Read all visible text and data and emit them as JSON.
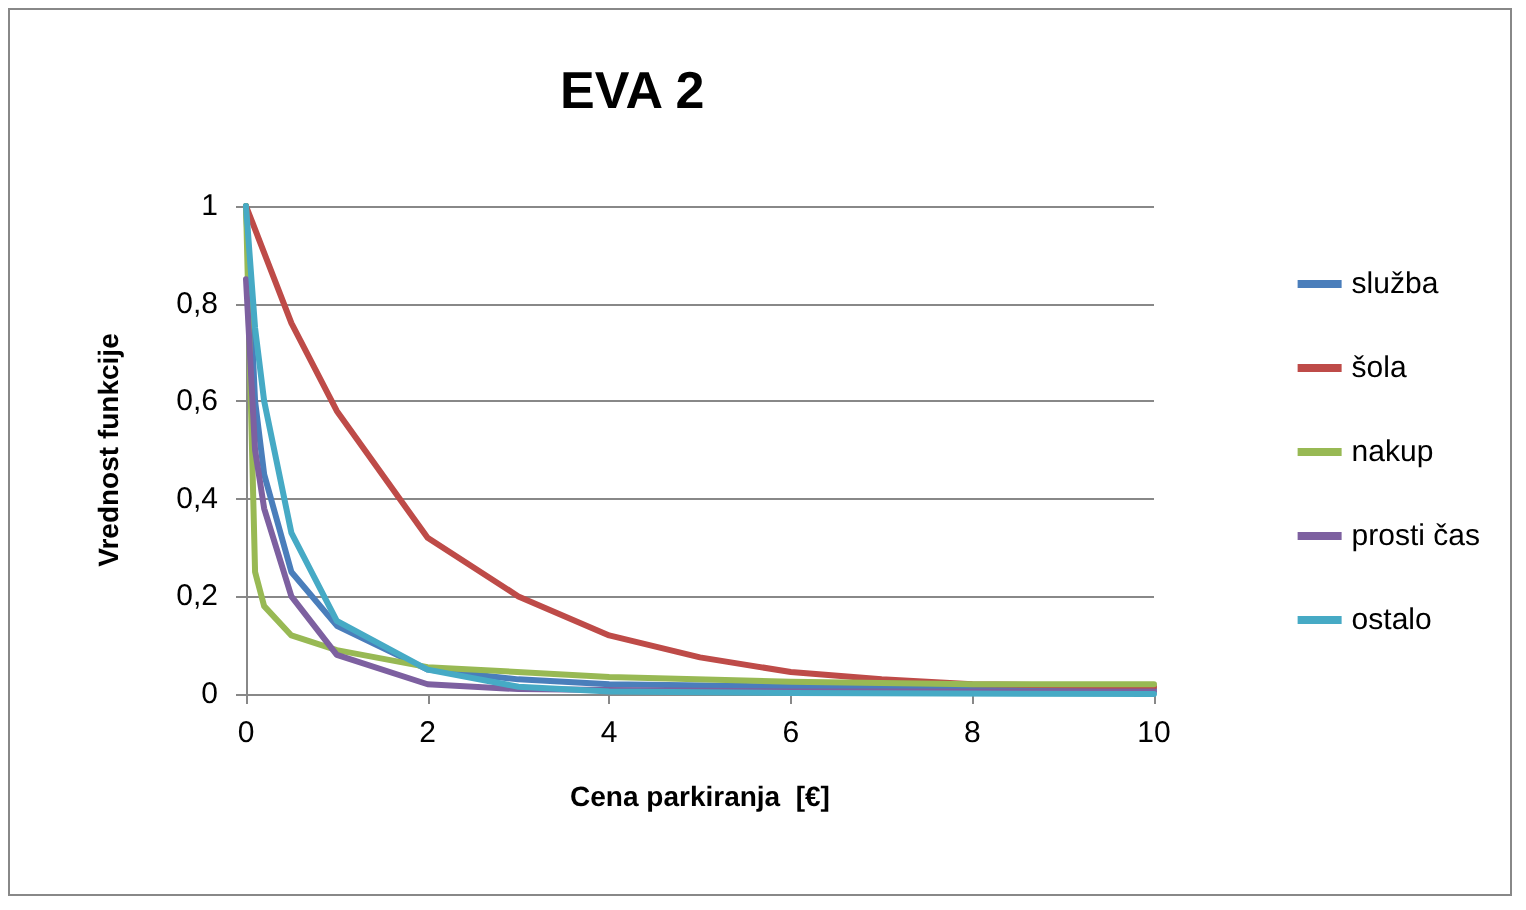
{
  "chart_data": {
    "type": "line",
    "title": "EVA 2",
    "xlabel": "Cena parkiranja  [€]",
    "ylabel": "Vrednost funkcije",
    "xlim": [
      0,
      10
    ],
    "xticks": [
      0,
      2,
      4,
      6,
      8,
      10
    ],
    "ylim": [
      0,
      1
    ],
    "yticks": [
      0,
      {
        "value": 0.2,
        "label": "0,2"
      },
      {
        "value": 0.4,
        "label": "0,4"
      },
      {
        "value": 0.6,
        "label": "0,6"
      },
      {
        "value": 0.8,
        "label": "0,8"
      },
      1
    ],
    "grid": "y",
    "legend": "right",
    "marker": "none",
    "line_style": "solid",
    "series": [
      {
        "name": "služba",
        "color": "#4a7ebb",
        "x": [
          0,
          0.1,
          0.2,
          0.5,
          1,
          2,
          3,
          4,
          6,
          8,
          10
        ],
        "values": [
          1,
          0.6,
          0.45,
          0.25,
          0.14,
          0.05,
          0.03,
          0.02,
          0.015,
          0.01,
          0.01
        ]
      },
      {
        "name": "šola",
        "color": "#be4b48",
        "x": [
          0,
          0.5,
          1,
          2,
          3,
          4,
          5,
          6,
          7,
          8,
          10
        ],
        "values": [
          1,
          0.76,
          0.58,
          0.32,
          0.2,
          0.12,
          0.075,
          0.045,
          0.03,
          0.02,
          0.015
        ]
      },
      {
        "name": "nakup",
        "color": "#98b954",
        "x": [
          0,
          0.1,
          0.2,
          0.5,
          1,
          2,
          4,
          6,
          8,
          10
        ],
        "values": [
          1,
          0.25,
          0.18,
          0.12,
          0.09,
          0.055,
          0.035,
          0.025,
          0.02,
          0.02
        ]
      },
      {
        "name": "prosti čas",
        "color": "#7d60a0",
        "x": [
          0,
          0.1,
          0.2,
          0.5,
          1,
          2,
          3,
          4,
          6,
          10
        ],
        "values": [
          0.85,
          0.5,
          0.38,
          0.2,
          0.08,
          0.02,
          0.01,
          0.008,
          0.005,
          0.005
        ]
      },
      {
        "name": "ostalo",
        "color": "#46aac5",
        "x": [
          0,
          0.1,
          0.2,
          0.5,
          1,
          2,
          3,
          4,
          6,
          10
        ],
        "values": [
          1,
          0.75,
          0.6,
          0.33,
          0.15,
          0.05,
          0.015,
          0.005,
          0.002,
          0
        ]
      }
    ]
  }
}
